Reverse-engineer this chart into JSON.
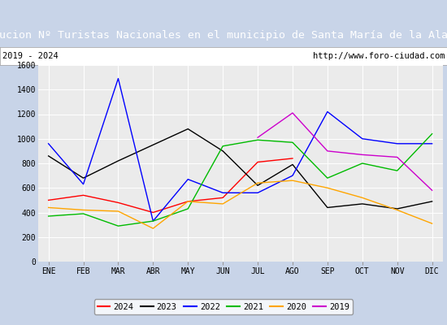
{
  "title": "Evolucion Nº Turistas Nacionales en el municipio de Santa María de la Alameda",
  "subtitle_left": "2019 - 2024",
  "subtitle_right": "http://www.foro-ciudad.com",
  "months": [
    "ENE",
    "FEB",
    "MAR",
    "ABR",
    "MAY",
    "JUN",
    "JUL",
    "AGO",
    "SEP",
    "OCT",
    "NOV",
    "DIC"
  ],
  "ylim": [
    0,
    1600
  ],
  "yticks": [
    0,
    200,
    400,
    600,
    800,
    1000,
    1200,
    1400,
    1600
  ],
  "series": {
    "2024": {
      "color": "#ff0000",
      "values": [
        500,
        540,
        480,
        400,
        490,
        520,
        810,
        840,
        null,
        null,
        null,
        null
      ]
    },
    "2023": {
      "color": "#000000",
      "values": [
        860,
        680,
        820,
        950,
        1080,
        900,
        620,
        790,
        440,
        470,
        430,
        490
      ]
    },
    "2022": {
      "color": "#0000ff",
      "values": [
        960,
        630,
        1490,
        330,
        670,
        560,
        560,
        700,
        1220,
        1000,
        960,
        960
      ]
    },
    "2021": {
      "color": "#00bb00",
      "values": [
        370,
        390,
        290,
        330,
        430,
        940,
        990,
        970,
        680,
        800,
        740,
        1040
      ]
    },
    "2020": {
      "color": "#ffa500",
      "values": [
        440,
        420,
        410,
        270,
        490,
        470,
        640,
        660,
        600,
        520,
        420,
        310
      ]
    },
    "2019": {
      "color": "#cc00cc",
      "values": [
        null,
        null,
        null,
        null,
        null,
        null,
        1010,
        1210,
        900,
        870,
        850,
        580
      ]
    }
  },
  "background_color": "#ebebeb",
  "outer_bg_color": "#c8d4e8",
  "title_bg_color": "#4472c4",
  "title_color": "#ffffff",
  "border_color": "#aaaaaa",
  "title_fontsize": 9.5,
  "subtitle_fontsize": 7.5,
  "tick_fontsize": 7,
  "legend_fontsize": 7.5
}
